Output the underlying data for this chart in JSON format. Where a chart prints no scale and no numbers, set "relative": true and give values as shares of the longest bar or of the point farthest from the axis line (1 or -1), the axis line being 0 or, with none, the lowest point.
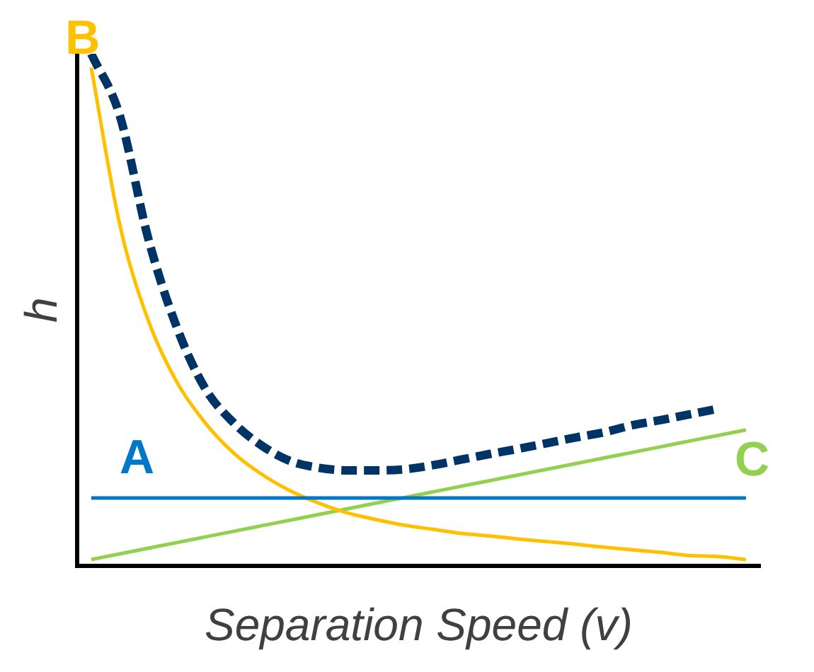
{
  "chart_data": {
    "type": "line",
    "relative": true,
    "xlabel": "Separation Speed (v)",
    "ylabel": "h",
    "categories": [
      null,
      null,
      null,
      null,
      null,
      null,
      null,
      null,
      null,
      null,
      null,
      null,
      null,
      null,
      null,
      null,
      null,
      null,
      null,
      null,
      null,
      null,
      null,
      null
    ],
    "series": [
      {
        "name": "A",
        "color": "#0077c8",
        "values": [
          0.133,
          0.133,
          0.133,
          0.133,
          0.133,
          0.133,
          0.133,
          0.133,
          0.133,
          0.133,
          0.133,
          0.133,
          0.133,
          0.133,
          0.133,
          0.133,
          0.133,
          0.133,
          0.133,
          0.133,
          0.133,
          0.133,
          0.133,
          0.133
        ]
      },
      {
        "name": "B",
        "color": "#ffc000",
        "values": [
          0.973,
          0.667,
          0.48,
          0.36,
          0.28,
          0.221,
          0.179,
          0.147,
          0.123,
          0.104,
          0.091,
          0.08,
          0.072,
          0.064,
          0.059,
          0.053,
          0.048,
          0.043,
          0.037,
          0.032,
          0.027,
          0.021,
          0.019,
          0.013
        ]
      },
      {
        "name": "C",
        "color": "#92d050",
        "values": [
          0.013,
          0.024,
          0.035,
          0.046,
          0.057,
          0.068,
          0.079,
          0.09,
          0.101,
          0.112,
          0.123,
          0.134,
          0.145,
          0.156,
          0.167,
          0.178,
          0.189,
          0.2,
          0.211,
          0.222,
          0.233,
          0.244,
          0.255,
          0.266
        ]
      },
      {
        "color": "#003366",
        "line_style": "dashed",
        "values": [
          1,
          0.88,
          0.64,
          0.467,
          0.347,
          0.28,
          0.235,
          0.205,
          0.192,
          0.187,
          0.187,
          0.189,
          0.197,
          0.208,
          0.219,
          0.229,
          0.24,
          0.251,
          0.261,
          0.275,
          0.285,
          0.296,
          0.307,
          null
        ]
      }
    ],
    "legend": false,
    "grid": false,
    "marker": "none"
  }
}
